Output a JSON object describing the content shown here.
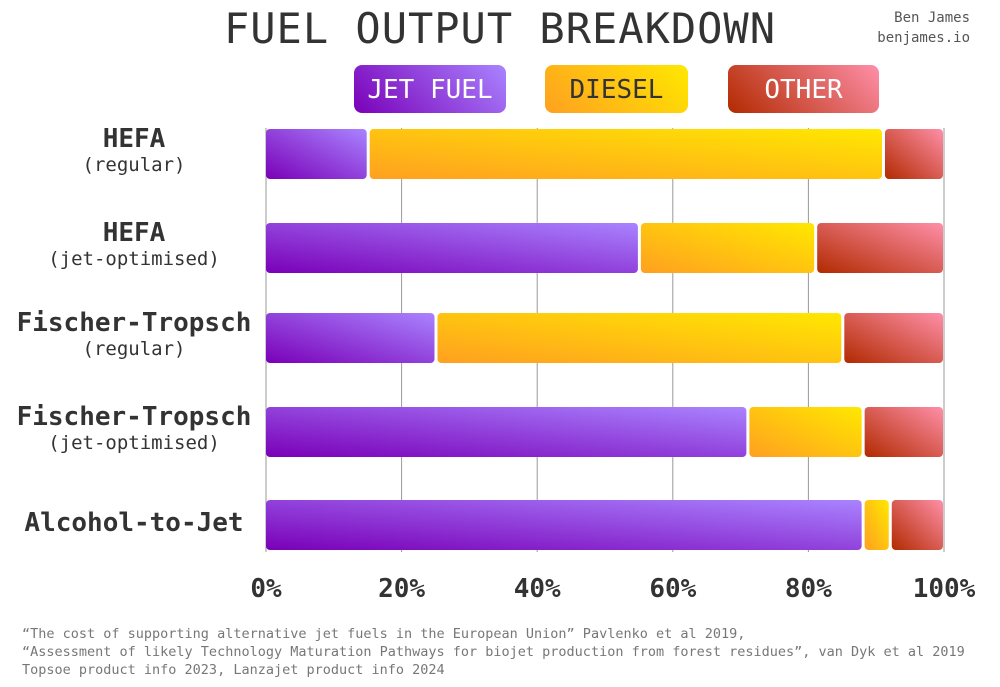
{
  "title": "FUEL OUTPUT BREAKDOWN",
  "credit": {
    "name": "Ben James",
    "site": "benjames.io"
  },
  "colors": {
    "jet_fuel": [
      "#7a00b8",
      "#a984ff"
    ],
    "diesel": [
      "#ffa020",
      "#ffe800"
    ],
    "other": [
      "#b22a00",
      "#ff8fa8"
    ],
    "grid": "#999999"
  },
  "sources": [
    "“The cost of supporting alternative jet fuels in the European Union” Pavlenko et al 2019,",
    "“Assessment of likely Technology Maturation Pathways for biojet production from forest residues”, van Dyk et al 2019",
    "Topsoe product info 2023, Lanzajet product info 2024"
  ],
  "chart_data": {
    "type": "bar",
    "orientation": "horizontal",
    "stacked": true,
    "title": "FUEL OUTPUT BREAKDOWN",
    "categories": [
      {
        "name": "HEFA",
        "sub": "(regular)"
      },
      {
        "name": "HEFA",
        "sub": "(jet-optimised)"
      },
      {
        "name": "Fischer-Tropsch",
        "sub": "(regular)"
      },
      {
        "name": "Fischer-Tropsch",
        "sub": "(jet-optimised)"
      },
      {
        "name": "Alcohol-to-Jet",
        "sub": ""
      }
    ],
    "series": [
      {
        "name": "JET FUEL",
        "key": "jet_fuel",
        "values": [
          15,
          55,
          25,
          71,
          88
        ]
      },
      {
        "name": "DIESEL",
        "key": "diesel",
        "values": [
          76,
          26,
          60,
          17,
          4
        ]
      },
      {
        "name": "OTHER",
        "key": "other",
        "values": [
          9,
          19,
          15,
          12,
          8
        ]
      }
    ],
    "xlim": [
      0,
      100
    ],
    "xticks": [
      "0%",
      "20%",
      "40%",
      "60%",
      "80%",
      "100%"
    ],
    "grid": true,
    "legend": "top"
  }
}
